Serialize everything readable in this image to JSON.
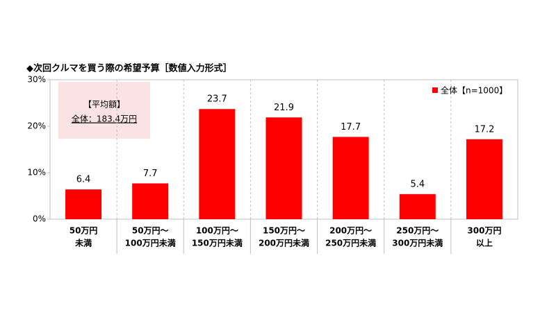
{
  "chart_data": {
    "type": "bar",
    "title": "◆次回クルマを買う際の希望予算［数値入力形式］",
    "categories": [
      [
        "50万円",
        "未満"
      ],
      [
        "50万円～",
        "100万円未満"
      ],
      [
        "100万円～",
        "150万円未満"
      ],
      [
        "150万円～",
        "200万円未満"
      ],
      [
        "200万円～",
        "250万円未満"
      ],
      [
        "250万円～",
        "300万円未満"
      ],
      [
        "300万円",
        "以上"
      ]
    ],
    "series": [
      {
        "name": "全体【n=1000】",
        "color": "#ff0000",
        "values": [
          6.4,
          7.7,
          23.7,
          21.9,
          17.7,
          5.4,
          17.2
        ]
      }
    ],
    "ylim": [
      0,
      30
    ],
    "yticks": [
      {
        "value": 0,
        "label": "0%"
      },
      {
        "value": 10,
        "label": "10%"
      },
      {
        "value": 20,
        "label": "20%"
      },
      {
        "value": 30,
        "label": "30%"
      }
    ],
    "annotation": [
      "【平均額】",
      "全体：183.4万円"
    ],
    "legend": "top-right"
  }
}
